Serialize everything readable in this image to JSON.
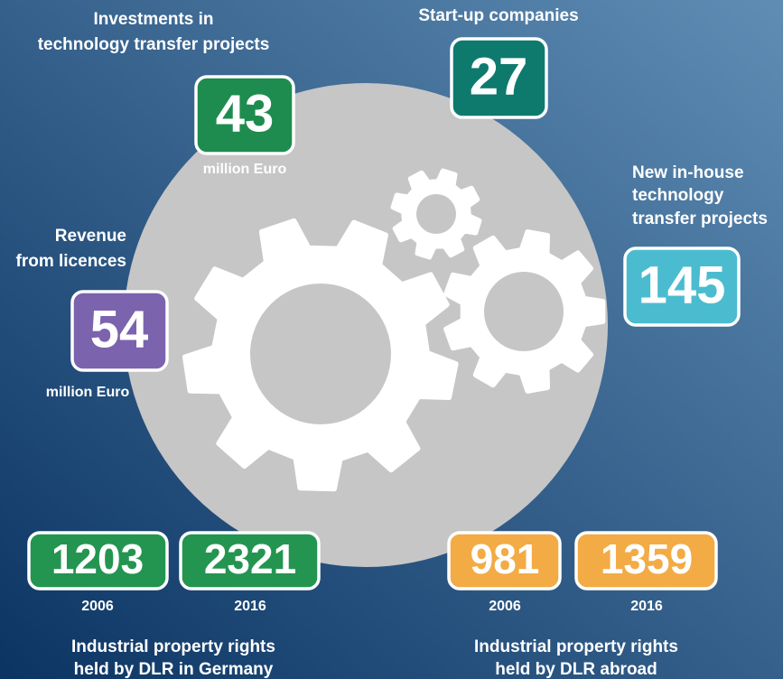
{
  "stats": [
    {
      "label": [
        "Investments in",
        "technology transfer projects"
      ],
      "value": 43,
      "unit": "million  Euro"
    },
    {
      "label": [
        "Start-up companies"
      ],
      "value": 27
    },
    {
      "label": [
        "New in-house",
        "technology",
        "transfer projects"
      ],
      "value": 145
    },
    {
      "label": [
        "Revenue",
        "from licences"
      ],
      "value": 54,
      "unit": "million  Euro"
    }
  ],
  "property_rights": [
    {
      "label": [
        "Industrial property rights",
        "held by DLR in Germany"
      ],
      "entries": [
        {
          "value": 1203,
          "year": "2006"
        },
        {
          "value": 2321,
          "year": "2016"
        }
      ]
    },
    {
      "label": [
        "Industrial property rights",
        "held by DLR abroad"
      ],
      "entries": [
        {
          "value": 981,
          "year": "2006"
        },
        {
          "value": 1359,
          "year": "2016"
        }
      ]
    }
  ]
}
